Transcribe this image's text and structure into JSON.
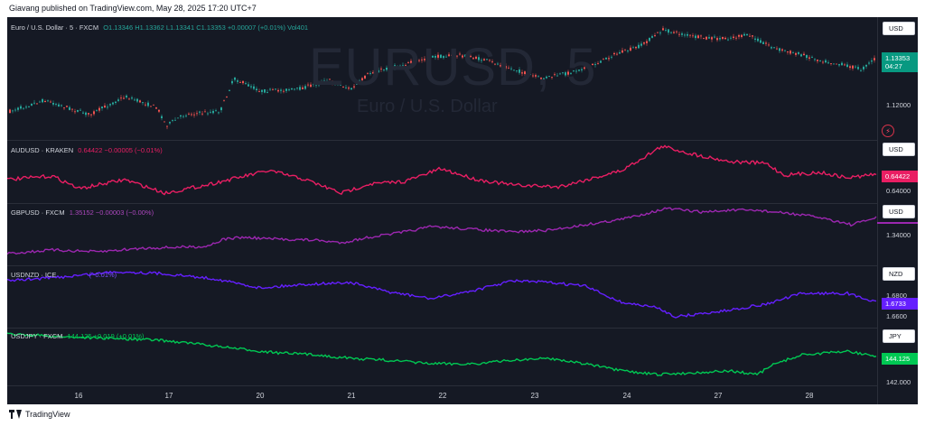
{
  "header": {
    "text": "Giavang published on TradingView.com, May 28, 2025 17:20 UTC+7"
  },
  "watermark": {
    "symbol": "EURUSD, 5",
    "name": "Euro / U.S. Dollar"
  },
  "colors": {
    "background": "#151924",
    "eurusd_up": "#26a69a",
    "eurusd_down": "#ef5350",
    "audusd": "#e91e63",
    "gbpusd": "#9c27b0",
    "usdnzd": "#651fff",
    "usdjpy": "#00c853"
  },
  "panes": [
    {
      "legend_title": "Euro / U.S. Dollar · 5 · FXCM",
      "ohlc": "O1.13346 H1.13362 L1.13341 C1.13353 +0.00007 (+0.01%) Vol401",
      "currency": "USD",
      "ticks": [
        "1.12000"
      ],
      "last_price": "1.13353",
      "countdown": "04:27"
    },
    {
      "legend_title": "AUDUSD · KRAKEN",
      "values": "0.64422 −0.00005 (−0.01%)",
      "currency": "USD",
      "ticks": [
        "0.64000"
      ],
      "last_price": "0.64422"
    },
    {
      "legend_title": "GBPUSD · FXCM",
      "values": "1.35152 −0.00003 (−0.00%)",
      "currency": "USD",
      "ticks": [
        "1.34000"
      ],
      "last_price": ""
    },
    {
      "legend_title": "USDNZD · ICE",
      "values": "(−0.01%)",
      "currency": "NZD",
      "ticks": [
        "1.6800",
        "1.6600"
      ],
      "last_price": "1.6733"
    },
    {
      "legend_title": "USDJPY · FXCM",
      "values": "144.125 +0.019 (+0.01%)",
      "currency": "JPY",
      "ticks": [
        "142.000"
      ],
      "last_price": "144.125"
    }
  ],
  "time_axis": [
    "16",
    "17",
    "20",
    "21",
    "22",
    "23",
    "24",
    "27",
    "28"
  ],
  "footer": {
    "brand": "TradingView"
  }
}
